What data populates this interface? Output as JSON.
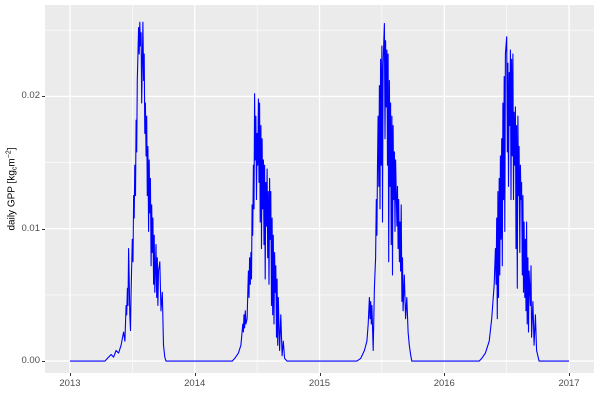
{
  "y_axis": {
    "title_pre": "daily GPP [kg",
    "title_sub": "c",
    "title_mid": "m",
    "title_sup": "−2",
    "title_post": "]",
    "tick_labels": [
      "0.00",
      "0.01",
      "0.02"
    ]
  },
  "x_axis": {
    "tick_labels": [
      "2013",
      "2014",
      "2015",
      "2016",
      "2017"
    ]
  },
  "chart_data": {
    "type": "line",
    "title": "",
    "xlabel": "",
    "ylabel": "daily GPP [kg_c m^-2]",
    "legend_position": "none",
    "grid": true,
    "panel_bg": "#EBEBEB",
    "grid_color": "#FFFFFF",
    "line_color": "#0000FF",
    "tick_label_color": "#4D4D4D",
    "axis_title_color": "#000000",
    "xlim": [
      2012.8,
      2017.2
    ],
    "ylim": [
      -0.0009,
      0.0269
    ],
    "x_ticks": [
      2013,
      2014,
      2015,
      2016,
      2017
    ],
    "y_ticks": [
      0,
      0.01,
      0.02
    ],
    "x_minor_ticks": [
      2013.5,
      2014.5,
      2015.5,
      2016.5
    ],
    "y_minor_ticks": [
      0.005,
      0.015,
      0.025
    ],
    "series": [
      {
        "name": "daily GPP",
        "color": "#0000FF",
        "points": [
          [
            2013.0,
            0
          ],
          [
            2013.28,
            0
          ],
          [
            2013.3,
            0.0002
          ],
          [
            2013.33,
            0.0005
          ],
          [
            2013.35,
            0.0003
          ],
          [
            2013.37,
            0.0008
          ],
          [
            2013.39,
            0.0006
          ],
          [
            2013.41,
            0.0012
          ],
          [
            2013.43,
            0.0022
          ],
          [
            2013.44,
            0.0015
          ],
          [
            2013.45,
            0.0042
          ],
          [
            2013.455,
            0.0035
          ],
          [
            2013.46,
            0.0055
          ],
          [
            2013.465,
            0.0042
          ],
          [
            2013.47,
            0.0085
          ],
          [
            2013.475,
            0.0062
          ],
          [
            2013.48,
            0.0035
          ],
          [
            2013.485,
            0.0023
          ],
          [
            2013.49,
            0.0052
          ],
          [
            2013.5,
            0.0092
          ],
          [
            2013.505,
            0.0075
          ],
          [
            2013.51,
            0.0125
          ],
          [
            2013.515,
            0.0108
          ],
          [
            2013.52,
            0.0148
          ],
          [
            2013.525,
            0.0125
          ],
          [
            2013.53,
            0.0182
          ],
          [
            2013.535,
            0.0158
          ],
          [
            2013.54,
            0.0212
          ],
          [
            2013.55,
            0.0252
          ],
          [
            2013.555,
            0.0232
          ],
          [
            2013.56,
            0.0256
          ],
          [
            2013.565,
            0.0238
          ],
          [
            2013.57,
            0.0248
          ],
          [
            2013.575,
            0.0195
          ],
          [
            2013.58,
            0.0225
          ],
          [
            2013.585,
            0.0256
          ],
          [
            2013.59,
            0.0212
          ],
          [
            2013.595,
            0.0232
          ],
          [
            2013.6,
            0.0172
          ],
          [
            2013.605,
            0.0195
          ],
          [
            2013.61,
            0.0155
          ],
          [
            2013.615,
            0.0185
          ],
          [
            2013.62,
            0.0125
          ],
          [
            2013.625,
            0.0162
          ],
          [
            2013.63,
            0.0098
          ],
          [
            2013.635,
            0.0152
          ],
          [
            2013.64,
            0.0112
          ],
          [
            2013.645,
            0.0138
          ],
          [
            2013.65,
            0.0072
          ],
          [
            2013.655,
            0.0118
          ],
          [
            2013.66,
            0.0082
          ],
          [
            2013.665,
            0.0108
          ],
          [
            2013.67,
            0.0058
          ],
          [
            2013.675,
            0.0095
          ],
          [
            2013.68,
            0.0052
          ],
          [
            2013.69,
            0.0088
          ],
          [
            2013.695,
            0.0048
          ],
          [
            2013.7,
            0.0078
          ],
          [
            2013.705,
            0.0042
          ],
          [
            2013.71,
            0.0068
          ],
          [
            2013.72,
            0.0075
          ],
          [
            2013.73,
            0.0038
          ],
          [
            2013.74,
            0.0052
          ],
          [
            2013.75,
            0.0012
          ],
          [
            2013.76,
            0.0003
          ],
          [
            2013.77,
            0
          ],
          [
            2014.3,
            0
          ],
          [
            2014.32,
            0.0002
          ],
          [
            2014.35,
            0.0006
          ],
          [
            2014.37,
            0.0012
          ],
          [
            2014.385,
            0.0028
          ],
          [
            2014.39,
            0.0022
          ],
          [
            2014.395,
            0.0035
          ],
          [
            2014.4,
            0.0025
          ],
          [
            2014.405,
            0.0038
          ],
          [
            2014.41,
            0.0028
          ],
          [
            2014.42,
            0.0032
          ],
          [
            2014.43,
            0.0068
          ],
          [
            2014.435,
            0.0048
          ],
          [
            2014.44,
            0.0078
          ],
          [
            2014.445,
            0.0058
          ],
          [
            2014.45,
            0.0082
          ],
          [
            2014.455,
            0.0062
          ],
          [
            2014.46,
            0.0118
          ],
          [
            2014.465,
            0.0095
          ],
          [
            2014.47,
            0.0148
          ],
          [
            2014.475,
            0.0115
          ],
          [
            2014.48,
            0.0202
          ],
          [
            2014.485,
            0.0152
          ],
          [
            2014.49,
            0.0185
          ],
          [
            2014.495,
            0.0122
          ],
          [
            2014.5,
            0.0172
          ],
          [
            2014.505,
            0.0148
          ],
          [
            2014.51,
            0.0198
          ],
          [
            2014.515,
            0.0135
          ],
          [
            2014.52,
            0.0195
          ],
          [
            2014.525,
            0.0105
          ],
          [
            2014.53,
            0.0178
          ],
          [
            2014.535,
            0.0085
          ],
          [
            2014.54,
            0.0168
          ],
          [
            2014.545,
            0.0115
          ],
          [
            2014.55,
            0.0152
          ],
          [
            2014.555,
            0.0088
          ],
          [
            2014.56,
            0.0148
          ],
          [
            2014.565,
            0.0062
          ],
          [
            2014.57,
            0.0135
          ],
          [
            2014.575,
            0.0102
          ],
          [
            2014.58,
            0.0145
          ],
          [
            2014.585,
            0.0078
          ],
          [
            2014.59,
            0.0128
          ],
          [
            2014.595,
            0.0058
          ],
          [
            2014.6,
            0.0138
          ],
          [
            2014.605,
            0.0092
          ],
          [
            2014.61,
            0.0128
          ],
          [
            2014.615,
            0.0042
          ],
          [
            2014.62,
            0.0108
          ],
          [
            2014.625,
            0.0035
          ],
          [
            2014.63,
            0.0095
          ],
          [
            2014.635,
            0.0028
          ],
          [
            2014.64,
            0.0082
          ],
          [
            2014.645,
            0.0052
          ],
          [
            2014.65,
            0.0072
          ],
          [
            2014.655,
            0.0018
          ],
          [
            2014.66,
            0.0062
          ],
          [
            2014.665,
            0.0012
          ],
          [
            2014.67,
            0.0048
          ],
          [
            2014.68,
            0.0008
          ],
          [
            2014.69,
            0.0035
          ],
          [
            2014.7,
            0.0004
          ],
          [
            2014.71,
            0.0015
          ],
          [
            2014.72,
            0.0002
          ],
          [
            2014.74,
            0
          ],
          [
            2015.3,
            0
          ],
          [
            2015.33,
            0.0002
          ],
          [
            2015.36,
            0.0008
          ],
          [
            2015.38,
            0.0015
          ],
          [
            2015.39,
            0.0028
          ],
          [
            2015.4,
            0.0048
          ],
          [
            2015.405,
            0.0032
          ],
          [
            2015.41,
            0.0045
          ],
          [
            2015.415,
            0.0028
          ],
          [
            2015.42,
            0.0042
          ],
          [
            2015.43,
            0.0008
          ],
          [
            2015.44,
            0.0055
          ],
          [
            2015.45,
            0.0078
          ],
          [
            2015.455,
            0.0122
          ],
          [
            2015.46,
            0.0095
          ],
          [
            2015.465,
            0.0148
          ],
          [
            2015.47,
            0.0185
          ],
          [
            2015.475,
            0.0132
          ],
          [
            2015.48,
            0.0208
          ],
          [
            2015.485,
            0.0115
          ],
          [
            2015.49,
            0.0228
          ],
          [
            2015.495,
            0.0148
          ],
          [
            2015.5,
            0.0238
          ],
          [
            2015.505,
            0.0105
          ],
          [
            2015.51,
            0.0222
          ],
          [
            2015.515,
            0.0242
          ],
          [
            2015.52,
            0.0255
          ],
          [
            2015.525,
            0.0168
          ],
          [
            2015.53,
            0.0242
          ],
          [
            2015.535,
            0.0192
          ],
          [
            2015.54,
            0.0235
          ],
          [
            2015.545,
            0.0148
          ],
          [
            2015.55,
            0.0232
          ],
          [
            2015.555,
            0.0075
          ],
          [
            2015.56,
            0.0212
          ],
          [
            2015.565,
            0.0132
          ],
          [
            2015.57,
            0.0195
          ],
          [
            2015.575,
            0.0088
          ],
          [
            2015.58,
            0.0185
          ],
          [
            2015.585,
            0.0065
          ],
          [
            2015.59,
            0.0178
          ],
          [
            2015.595,
            0.0122
          ],
          [
            2015.6,
            0.0158
          ],
          [
            2015.605,
            0.0098
          ],
          [
            2015.61,
            0.0152
          ],
          [
            2015.62,
            0.0102
          ],
          [
            2015.625,
            0.0132
          ],
          [
            2015.63,
            0.0085
          ],
          [
            2015.635,
            0.0122
          ],
          [
            2015.64,
            0.0075
          ],
          [
            2015.645,
            0.0105
          ],
          [
            2015.65,
            0.0068
          ],
          [
            2015.655,
            0.0118
          ],
          [
            2015.66,
            0.0045
          ],
          [
            2015.665,
            0.0078
          ],
          [
            2015.67,
            0.0038
          ],
          [
            2015.68,
            0.0065
          ],
          [
            2015.69,
            0.0032
          ],
          [
            2015.7,
            0.0048
          ],
          [
            2015.71,
            0.0022
          ],
          [
            2015.72,
            0.0012
          ],
          [
            2015.73,
            0.0005
          ],
          [
            2015.74,
            0
          ],
          [
            2016.28,
            0
          ],
          [
            2016.3,
            0.0002
          ],
          [
            2016.33,
            0.0006
          ],
          [
            2016.36,
            0.0015
          ],
          [
            2016.38,
            0.0032
          ],
          [
            2016.4,
            0.0058
          ],
          [
            2016.41,
            0.0085
          ],
          [
            2016.415,
            0.0058
          ],
          [
            2016.42,
            0.0108
          ],
          [
            2016.425,
            0.0032
          ],
          [
            2016.43,
            0.0128
          ],
          [
            2016.435,
            0.0048
          ],
          [
            2016.44,
            0.0138
          ],
          [
            2016.445,
            0.0065
          ],
          [
            2016.45,
            0.0155
          ],
          [
            2016.455,
            0.0092
          ],
          [
            2016.46,
            0.0168
          ],
          [
            2016.465,
            0.0072
          ],
          [
            2016.47,
            0.0195
          ],
          [
            2016.475,
            0.0122
          ],
          [
            2016.48,
            0.0215
          ],
          [
            2016.485,
            0.0098
          ],
          [
            2016.49,
            0.0232
          ],
          [
            2016.5,
            0.0245
          ],
          [
            2016.505,
            0.0158
          ],
          [
            2016.51,
            0.0225
          ],
          [
            2016.515,
            0.0132
          ],
          [
            2016.52,
            0.0218
          ],
          [
            2016.525,
            0.0178
          ],
          [
            2016.53,
            0.0235
          ],
          [
            2016.535,
            0.0122
          ],
          [
            2016.54,
            0.0228
          ],
          [
            2016.545,
            0.0155
          ],
          [
            2016.55,
            0.0232
          ],
          [
            2016.555,
            0.0122
          ],
          [
            2016.56,
            0.0188
          ],
          [
            2016.565,
            0.0148
          ],
          [
            2016.57,
            0.0192
          ],
          [
            2016.575,
            0.0085
          ],
          [
            2016.58,
            0.0178
          ],
          [
            2016.585,
            0.0055
          ],
          [
            2016.59,
            0.0185
          ],
          [
            2016.595,
            0.0125
          ],
          [
            2016.6,
            0.0162
          ],
          [
            2016.605,
            0.0082
          ],
          [
            2016.61,
            0.0148
          ],
          [
            2016.615,
            0.0122
          ],
          [
            2016.62,
            0.0135
          ],
          [
            2016.625,
            0.0065
          ],
          [
            2016.63,
            0.0125
          ],
          [
            2016.635,
            0.0052
          ],
          [
            2016.64,
            0.0105
          ],
          [
            2016.645,
            0.0048
          ],
          [
            2016.65,
            0.0092
          ],
          [
            2016.655,
            0.0038
          ],
          [
            2016.66,
            0.0105
          ],
          [
            2016.665,
            0.0028
          ],
          [
            2016.67,
            0.0078
          ],
          [
            2016.675,
            0.0022
          ],
          [
            2016.68,
            0.0068
          ],
          [
            2016.69,
            0.0042
          ],
          [
            2016.695,
            0.0072
          ],
          [
            2016.7,
            0.0018
          ],
          [
            2016.71,
            0.0045
          ],
          [
            2016.72,
            0.0012
          ],
          [
            2016.73,
            0.0035
          ],
          [
            2016.74,
            0.0008
          ],
          [
            2016.76,
            0
          ],
          [
            2017.0,
            0
          ]
        ]
      }
    ]
  }
}
